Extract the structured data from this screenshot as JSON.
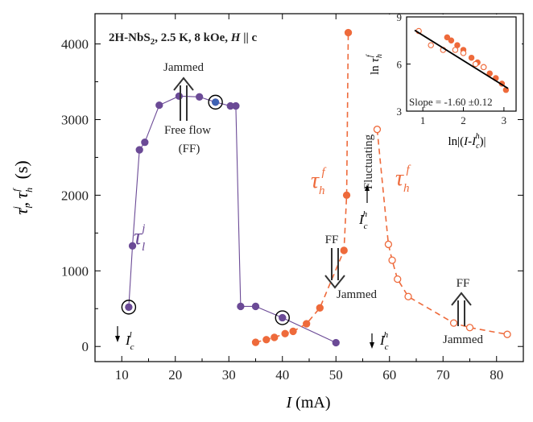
{
  "chart_data": [
    {
      "type": "scatter",
      "title": "2H-NbS",
      "title_sub": "2",
      "title_rest": ", 2.5 K, 8 kOe, ",
      "title_h": "H",
      "title_tail": " || c",
      "xlabel_var": "I",
      "xlabel_unit": " (mA)",
      "ylabel": "τl j , τh f   (s)",
      "ylabel_tau": "τ",
      "ylabel_sub_l": "l",
      "ylabel_sup_j": "j",
      "ylabel_sub_h": "h",
      "ylabel_sup_f": "f",
      "ylabel_comma": ",",
      "ylabel_unit": "(s)",
      "xlim": [
        5,
        85
      ],
      "ylim": [
        -200,
        4400
      ],
      "xticks": [
        "10",
        "20",
        "30",
        "40",
        "50",
        "60",
        "70",
        "80"
      ],
      "yticks": [
        "0",
        "1000",
        "2000",
        "3000",
        "4000"
      ],
      "xtick_values": [
        10,
        20,
        30,
        40,
        50,
        60,
        70,
        80
      ],
      "ytick_values": [
        0,
        1000,
        2000,
        3000,
        4000
      ],
      "grid": false,
      "series": [
        {
          "label_tau": "τ",
          "label_sub": "l",
          "label_sup": "j",
          "color": "#6b4a96",
          "marker": "filled-circle",
          "line": "solid",
          "x": [
            11.3,
            12.0,
            13.3,
            14.3,
            17.0,
            20.7,
            24.5,
            27.5,
            30.3,
            31.3,
            32.2,
            35.0,
            40.0,
            50.0
          ],
          "y": [
            520,
            1330,
            2600,
            2700,
            3190,
            3310,
            3300,
            3230,
            3180,
            3180,
            530,
            530,
            380,
            50
          ]
        },
        {
          "label_tau": "τ",
          "label_sub": "h",
          "label_sup": "f",
          "color": "#ee6a3b",
          "marker": "filled-circle",
          "line": "dashed",
          "x": [
            35.0,
            37.0,
            38.5,
            40.5,
            42.0,
            44.5,
            47.0,
            51.5,
            52.0,
            52.3
          ],
          "y": [
            55,
            90,
            120,
            170,
            200,
            300,
            510,
            1270,
            2000,
            4150
          ]
        },
        {
          "label_tau": "τ",
          "label_sub": "h",
          "label_sup": "f",
          "color": "#ee6a3b",
          "marker": "open-circle",
          "line": "dashed",
          "x": [
            57.7,
            59.8,
            60.5,
            61.5,
            63.5,
            72.0,
            75.0,
            82.0
          ],
          "y": [
            2870,
            1350,
            1140,
            890,
            660,
            310,
            250,
            160
          ]
        }
      ],
      "highlight_points": [
        {
          "x": 11.3,
          "y": 520,
          "circled": true,
          "color": "#6b4a96"
        },
        {
          "x": 27.5,
          "y": 3230,
          "circled": true,
          "color": "#3e62b4"
        },
        {
          "x": 40.0,
          "y": 380,
          "circled": true,
          "color": "#6b4a96"
        }
      ],
      "annotations": {
        "jammed_top": "Jammed",
        "free_flow": "Free flow",
        "ff_paren": "(FF)",
        "ff_mid": "FF",
        "jammed_mid": "Jammed",
        "fluctuating": "Fluctuating",
        "ff_right": "FF",
        "jammed_right": "Jammed",
        "ic_var": "I",
        "ic_sub": "c",
        "ic_sup_l": "l",
        "ic_sup_h": "h"
      }
    },
    {
      "type": "scatter",
      "title": "",
      "xlabel": "ln|(I-Ic h)|",
      "xlabel_ln": "ln",
      "xlabel_bar_open": "|(",
      "xlabel_I": "I",
      "xlabel_minus": "-",
      "xlabel_Ic": "I",
      "xlabel_sub": "c",
      "xlabel_sup": "h",
      "xlabel_close": ")|",
      "ylabel": "ln τh f",
      "ylabel_ln": "ln ",
      "ylabel_tau": "τ",
      "ylabel_sub": "h",
      "ylabel_sup": "f",
      "xlim": [
        0.6,
        3.3
      ],
      "ylim": [
        3,
        9
      ],
      "xticks": [
        "1",
        "2",
        "3"
      ],
      "yticks": [
        "3",
        "6",
        "9"
      ],
      "xtick_values": [
        1,
        2,
        3
      ],
      "ytick_values": [
        3,
        6,
        9
      ],
      "annotation": "Slope = -1.60 ±0.12",
      "series": [
        {
          "name": "filled",
          "color": "#ee6a3b",
          "marker": "filled-circle",
          "x": [
            1.6,
            1.7,
            1.85,
            2.0,
            2.2,
            2.35,
            2.5,
            2.65,
            2.8,
            2.95,
            3.05
          ],
          "y": [
            7.7,
            7.5,
            7.2,
            6.9,
            6.4,
            6.1,
            5.8,
            5.4,
            5.1,
            4.75,
            4.35
          ]
        },
        {
          "name": "open",
          "color": "#ee6a3b",
          "marker": "open-circle",
          "x": [
            0.9,
            1.2,
            1.5,
            1.8,
            2.0,
            2.3,
            2.5
          ],
          "y": [
            8.1,
            7.2,
            6.9,
            6.9,
            6.7,
            6.0,
            5.8
          ]
        }
      ],
      "fit_line": {
        "x": [
          0.8,
          3.1
        ],
        "y": [
          8.15,
          4.45
        ],
        "color": "#000000"
      }
    }
  ]
}
